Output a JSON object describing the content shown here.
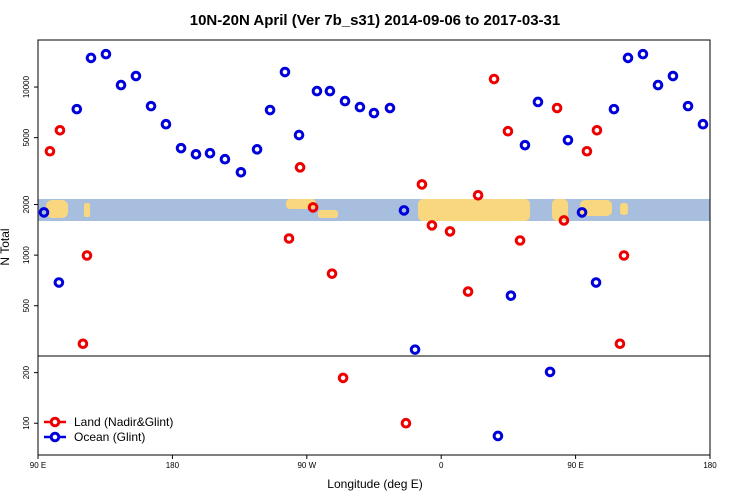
{
  "chart_data": {
    "type": "scatter",
    "title": "10N-20N April (Ver 7b_s31)   2014-09-06 to 2017-03-31",
    "x_label": "Longitude (deg E)",
    "y_label": "N Total",
    "log_y": true,
    "legend": "bottom-left",
    "xlim": [
      90,
      540
    ],
    "xticks": [
      {
        "value": 90,
        "label": "90 E"
      },
      180,
      {
        "value": 270,
        "label": "90 W"
      },
      {
        "value": 360,
        "label": "0"
      },
      {
        "value": 450,
        "label": "90 E"
      },
      {
        "value": 540,
        "label": "180"
      }
    ],
    "ylim": [
      64.7,
      19050
    ],
    "yticks": [
      100,
      200,
      500,
      1000,
      2000,
      5000,
      10000
    ],
    "series": [
      {
        "name": "Land (Nadir&Glint)",
        "color": "#ee0000",
        "x": [
          98,
          104.7,
          120.1,
          122.8,
          258.1,
          265.5,
          274.2,
          286.9,
          294.3,
          336.4,
          347.1,
          353.8,
          365.9,
          378,
          384.7,
          395.4,
          404.7,
          412.8,
          437.6,
          442.2,
          457.6,
          464.3,
          479.7,
          482.4
        ],
        "values": [
          4150,
          5530,
          297,
          995,
          1256,
          3330,
          1923,
          776,
          186,
          100,
          2635,
          1503,
          1384,
          607,
          2270,
          11160,
          5460,
          1222,
          7500,
          1608,
          4150,
          5530,
          297,
          995
        ]
      },
      {
        "name": "Ocean (Glint)",
        "color": "#0000dd",
        "x": [
          94,
          104,
          116,
          125.5,
          135.5,
          145.6,
          155.6,
          165.7,
          175.7,
          185.8,
          195.8,
          205.2,
          215.2,
          225.9,
          236.7,
          245.4,
          255.4,
          264.8,
          276.8,
          285.5,
          295.6,
          305.6,
          315,
          325.7,
          335.1,
          342.5,
          398,
          406.7,
          416.1,
          424.8,
          432.9,
          444.9,
          454.3,
          463.7,
          475.7,
          485.1,
          495.1,
          505.2,
          515.2,
          525.3,
          535.3
        ],
        "values": [
          1795,
          687,
          7390,
          14900,
          15700,
          10270,
          11630,
          7700,
          6010,
          4330,
          3980,
          4040,
          3720,
          3110,
          4260,
          7300,
          12280,
          5180,
          9460,
          9460,
          8250,
          7600,
          7000,
          7500,
          1845,
          274,
          84,
          574,
          4510,
          8150,
          202,
          4830,
          1795,
          687,
          7390,
          14900,
          15700,
          10270,
          11630,
          7700,
          6010
        ]
      }
    ]
  }
}
